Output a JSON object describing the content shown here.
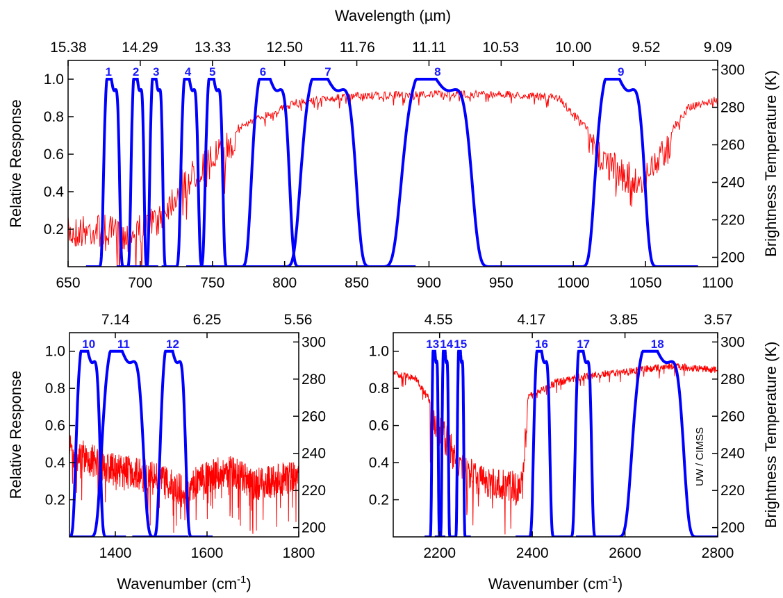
{
  "figure": {
    "credit": "UW / CIMSS",
    "colors": {
      "response": "#0000ff",
      "brightness": "#ff0000",
      "axes": "#000000"
    }
  },
  "chart_data": [
    {
      "id": "top",
      "type": "line",
      "xlabel": "Wavenumber (cm-1)",
      "x2label": "Wavelength (µm)",
      "ylabel": "Relative Response",
      "y2label": "Brightness Temperature (K)",
      "xlim": [
        650,
        1100
      ],
      "ylim": [
        0,
        1.1
      ],
      "y2lim": [
        195,
        305
      ],
      "xticks": [
        "650",
        "700",
        "750",
        "800",
        "850",
        "900",
        "950",
        "1000",
        "1050",
        "1100"
      ],
      "x2ticks": [
        "15.38",
        "14.29",
        "13.33",
        "12.50",
        "11.76",
        "11.11",
        "10.53",
        "10.00",
        "9.52",
        "9.09"
      ],
      "yticks": [
        "0.2",
        "0.4",
        "0.6",
        "0.8",
        "1.0"
      ],
      "y2ticks": [
        "200",
        "220",
        "240",
        "260",
        "280",
        "300"
      ],
      "bands": [
        {
          "label": "1",
          "center": 680,
          "fwhm": 11,
          "label_x": 678
        },
        {
          "label": "2",
          "center": 698,
          "fwhm": 9,
          "label_x": 697
        },
        {
          "label": "3",
          "center": 711,
          "fwhm": 9,
          "label_x": 711
        },
        {
          "label": "4",
          "center": 734,
          "fwhm": 12,
          "label_x": 733
        },
        {
          "label": "5",
          "center": 751,
          "fwhm": 12,
          "label_x": 750
        },
        {
          "label": "6",
          "center": 790,
          "fwhm": 26,
          "label_x": 785
        },
        {
          "label": "7",
          "center": 830,
          "fwhm": 38,
          "label_x": 830
        },
        {
          "label": "8",
          "center": 905,
          "fwhm": 48,
          "label_x": 906
        },
        {
          "label": "9",
          "center": 1032,
          "fwhm": 34,
          "label_x": 1033
        }
      ],
      "brightness_temperature": {
        "x": [
          650,
          670,
          690,
          710,
          730,
          750,
          770,
          790,
          810,
          850,
          900,
          950,
          990,
          1010,
          1030,
          1045,
          1060,
          1080,
          1100
        ],
        "y": [
          222,
          224,
          220,
          228,
          248,
          262,
          272,
          279,
          285,
          288,
          289,
          289,
          287,
          270,
          255,
          248,
          262,
          282,
          286
        ]
      }
    },
    {
      "id": "bottom-left",
      "type": "line",
      "xlabel": "Wavenumber (cm-1)",
      "ylabel": "Relative Response",
      "xlim": [
        1300,
        1800
      ],
      "ylim": [
        0,
        1.1
      ],
      "y2lim": [
        195,
        305
      ],
      "xticks": [
        "1400",
        "1600",
        "1800"
      ],
      "x2ticks": [
        "7.14",
        "6.25",
        "5.56"
      ],
      "yticks": [
        "0.2",
        "0.4",
        "0.6",
        "0.8",
        "1.0"
      ],
      "y2ticks": [
        "200",
        "220",
        "240",
        "260",
        "280",
        "300"
      ],
      "bands": [
        {
          "label": "10",
          "center": 1340,
          "fwhm": 52,
          "label_x": 1342
        },
        {
          "label": "11",
          "center": 1415,
          "fwhm": 90,
          "label_x": 1418
        },
        {
          "label": "12",
          "center": 1525,
          "fwhm": 55,
          "label_x": 1525
        }
      ],
      "brightness_temperature": {
        "x": [
          1300,
          1350,
          1400,
          1450,
          1500,
          1550,
          1600,
          1650,
          1700,
          1750,
          1800
        ],
        "y": [
          250,
          245,
          240,
          238,
          234,
          230,
          236,
          240,
          232,
          234,
          238
        ]
      }
    },
    {
      "id": "bottom-right",
      "type": "line",
      "xlabel": "Wavenumber (cm-1)",
      "y2label": "Brightness Temperature (K)",
      "xlim": [
        2100,
        2800
      ],
      "ylim": [
        0,
        1.1
      ],
      "y2lim": [
        195,
        305
      ],
      "xticks": [
        "2200",
        "2400",
        "2600",
        "2800"
      ],
      "x2ticks": [
        "4.55",
        "4.17",
        "3.85",
        "3.57"
      ],
      "yticks": [
        "0.2",
        "0.4",
        "0.6",
        "0.8",
        "1.0"
      ],
      "y2ticks": [
        "200",
        "220",
        "240",
        "260",
        "280",
        "300"
      ],
      "bands": [
        {
          "label": "13",
          "center": 2190,
          "fwhm": 14,
          "label_x": 2185
        },
        {
          "label": "14",
          "center": 2212,
          "fwhm": 14,
          "label_x": 2215
        },
        {
          "label": "15",
          "center": 2245,
          "fwhm": 14,
          "label_x": 2245
        },
        {
          "label": "16",
          "center": 2420,
          "fwhm": 35,
          "label_x": 2420
        },
        {
          "label": "17",
          "center": 2510,
          "fwhm": 35,
          "label_x": 2510
        },
        {
          "label": "18",
          "center": 2670,
          "fwhm": 110,
          "label_x": 2670
        }
      ],
      "brightness_temperature": {
        "x": [
          2100,
          2150,
          2200,
          2250,
          2300,
          2350,
          2375,
          2390,
          2450,
          2500,
          2600,
          2700,
          2800
        ],
        "y": [
          285,
          282,
          262,
          240,
          232,
          232,
          228,
          272,
          280,
          283,
          286,
          289,
          287
        ]
      }
    }
  ]
}
